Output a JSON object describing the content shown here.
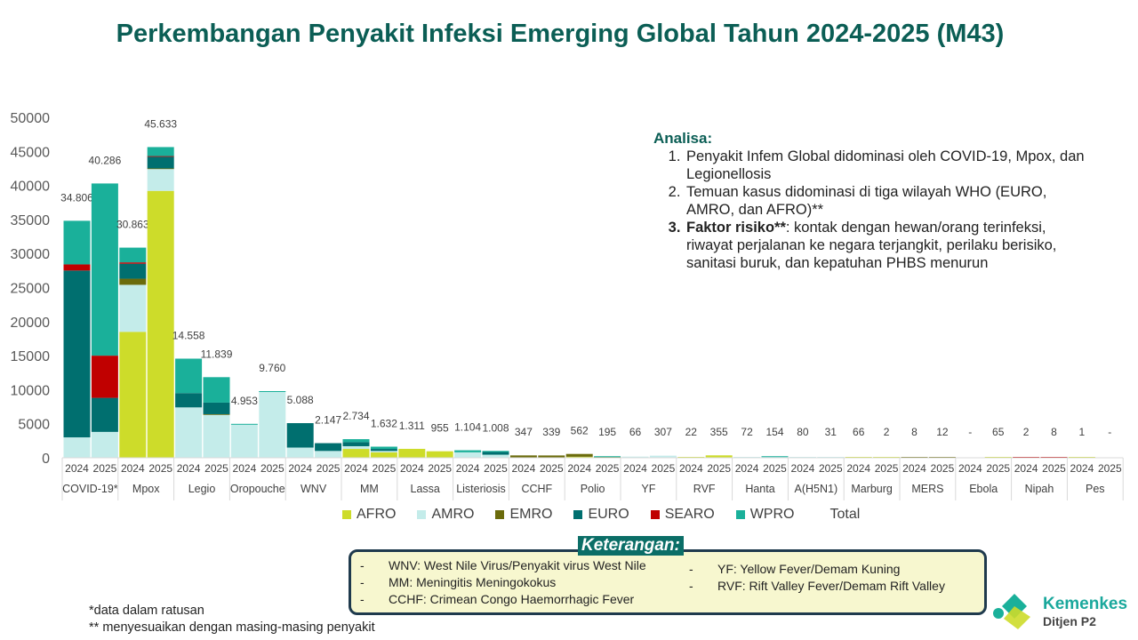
{
  "title": "Perkembangan Penyakit Infeksi Emerging Global Tahun 2024-2025 (M43)",
  "colors": {
    "AFRO": "#cddc2a",
    "AMRO": "#c4ecea",
    "EMRO": "#6b6b0b",
    "EURO": "#006f6f",
    "SEARO": "#c00000",
    "WPRO": "#1ab09a"
  },
  "chart_data": {
    "type": "bar",
    "stacked": true,
    "ylim": [
      0,
      50000
    ],
    "yticks": [
      0,
      5000,
      10000,
      15000,
      20000,
      25000,
      30000,
      35000,
      40000,
      45000,
      50000
    ],
    "years": [
      "2024",
      "2025"
    ],
    "series_names": [
      "AFRO",
      "AMRO",
      "EMRO",
      "EURO",
      "SEARO",
      "WPRO"
    ],
    "legend": [
      "AFRO",
      "AMRO",
      "EMRO",
      "EURO",
      "SEARO",
      "WPRO",
      "Total"
    ],
    "groups": [
      {
        "name": "COVID-19*",
        "bars": [
          {
            "total": "34.806",
            "v": [
              0,
              3000,
              0,
              24500,
              900,
              6406
            ]
          },
          {
            "total": "40.286",
            "v": [
              0,
              3800,
              0,
              5000,
              6200,
              25286
            ]
          }
        ]
      },
      {
        "name": "Mpox",
        "bars": [
          {
            "total": "30.863",
            "v": [
              18500,
              6900,
              900,
              2200,
              200,
              2163
            ]
          },
          {
            "total": "45.633",
            "v": [
              39200,
              3200,
              100,
              1700,
              100,
              1333
            ]
          }
        ]
      },
      {
        "name": "Legio",
        "bars": [
          {
            "total": "14.558",
            "v": [
              0,
              7400,
              0,
              2100,
              0,
              5058
            ]
          },
          {
            "total": "11.839",
            "v": [
              0,
              6300,
              100,
              1700,
              0,
              3739
            ]
          }
        ]
      },
      {
        "name": "Oropouche",
        "bars": [
          {
            "total": "4.953",
            "v": [
              0,
              4853,
              0,
              0,
              0,
              100
            ]
          },
          {
            "total": "9.760",
            "v": [
              0,
              9660,
              0,
              0,
              0,
              100
            ]
          }
        ]
      },
      {
        "name": "WNV",
        "bars": [
          {
            "total": "5.088",
            "v": [
              0,
              1500,
              0,
              3588,
              0,
              0
            ]
          },
          {
            "total": "2.147",
            "v": [
              0,
              1000,
              0,
              1147,
              0,
              0
            ]
          }
        ]
      },
      {
        "name": "MM",
        "bars": [
          {
            "total": "2.734",
            "v": [
              1300,
              400,
              0,
              600,
              0,
              434
            ]
          },
          {
            "total": "1.632",
            "v": [
              800,
              200,
              0,
              300,
              0,
              332
            ]
          }
        ]
      },
      {
        "name": "Lassa",
        "bars": [
          {
            "total": "1.311",
            "v": [
              1311,
              0,
              0,
              0,
              0,
              0
            ]
          },
          {
            "total": "955",
            "v": [
              955,
              0,
              0,
              0,
              0,
              0
            ]
          }
        ]
      },
      {
        "name": "Listeriosis",
        "bars": [
          {
            "total": "1.104",
            "v": [
              0,
              800,
              0,
              0,
              0,
              304
            ]
          },
          {
            "total": "1.008",
            "v": [
              0,
              450,
              0,
              400,
              0,
              158
            ]
          }
        ]
      },
      {
        "name": "CCHF",
        "bars": [
          {
            "total": "347",
            "v": [
              0,
              0,
              347,
              0,
              0,
              0
            ]
          },
          {
            "total": "339",
            "v": [
              0,
              0,
              339,
              0,
              0,
              0
            ]
          }
        ]
      },
      {
        "name": "Polio",
        "bars": [
          {
            "total": "562",
            "v": [
              150,
              0,
              412,
              0,
              0,
              0
            ]
          },
          {
            "total": "195",
            "v": [
              0,
              0,
              100,
              0,
              0,
              95
            ]
          }
        ]
      },
      {
        "name": "YF",
        "bars": [
          {
            "total": "66",
            "v": [
              40,
              26,
              0,
              0,
              0,
              0
            ]
          },
          {
            "total": "307",
            "v": [
              0,
              307,
              0,
              0,
              0,
              0
            ]
          }
        ]
      },
      {
        "name": "RVF",
        "bars": [
          {
            "total": "22",
            "v": [
              22,
              0,
              0,
              0,
              0,
              0
            ]
          },
          {
            "total": "355",
            "v": [
              355,
              0,
              0,
              0,
              0,
              0
            ]
          }
        ]
      },
      {
        "name": "Hanta",
        "bars": [
          {
            "total": "72",
            "v": [
              0,
              72,
              0,
              0,
              0,
              0
            ]
          },
          {
            "total": "154",
            "v": [
              0,
              100,
              0,
              0,
              0,
              54
            ]
          }
        ]
      },
      {
        "name": "A(H5N1)",
        "bars": [
          {
            "total": "80",
            "v": [
              0,
              80,
              0,
              0,
              0,
              0
            ]
          },
          {
            "total": "31",
            "v": [
              0,
              31,
              0,
              0,
              0,
              0
            ]
          }
        ]
      },
      {
        "name": "Marburg",
        "bars": [
          {
            "total": "66",
            "v": [
              66,
              0,
              0,
              0,
              0,
              0
            ]
          },
          {
            "total": "2",
            "v": [
              2,
              0,
              0,
              0,
              0,
              0
            ]
          }
        ]
      },
      {
        "name": "MERS",
        "bars": [
          {
            "total": "8",
            "v": [
              0,
              0,
              8,
              0,
              0,
              0
            ]
          },
          {
            "total": "12",
            "v": [
              0,
              0,
              12,
              0,
              0,
              0
            ]
          }
        ]
      },
      {
        "name": "Ebola",
        "bars": [
          {
            "total": "-",
            "v": [
              0,
              0,
              0,
              0,
              0,
              0
            ]
          },
          {
            "total": "65",
            "v": [
              65,
              0,
              0,
              0,
              0,
              0
            ]
          }
        ]
      },
      {
        "name": "Nipah",
        "bars": [
          {
            "total": "2",
            "v": [
              0,
              0,
              0,
              0,
              2,
              0
            ]
          },
          {
            "total": "8",
            "v": [
              0,
              0,
              0,
              0,
              8,
              0
            ]
          }
        ]
      },
      {
        "name": "Pes",
        "bars": [
          {
            "total": "1",
            "v": [
              1,
              0,
              0,
              0,
              0,
              0
            ]
          },
          {
            "total": "-",
            "v": [
              0,
              0,
              0,
              0,
              0,
              0
            ]
          }
        ]
      }
    ]
  },
  "analysis": {
    "heading": "Analisa:",
    "items": [
      {
        "bold": "",
        "text": "Penyakit Infem Global didominasi oleh COVID-19, Mpox, dan Legionellosis"
      },
      {
        "bold": "",
        "text": "Temuan kasus didominasi di tiga wilayah WHO (EURO, AMRO, dan AFRO)**"
      },
      {
        "bold": "Faktor risiko**",
        "text": ": kontak dengan hewan/orang terinfeksi, riwayat perjalanan ke negara terjangkit, perilaku berisiko, sanitasi buruk, dan kepatuhan PHBS menurun"
      }
    ]
  },
  "keterangan": {
    "title": "Keterangan:",
    "left": [
      "WNV: West Nile Virus/Penyakit virus West Nile",
      "MM: Meningitis Meningokokus",
      "CCHF: Crimean Congo Haemorrhagic Fever"
    ],
    "right": [
      "YF: Yellow Fever/Demam Kuning",
      "RVF: Rift Valley Fever/Demam Rift Valley"
    ]
  },
  "notes": [
    "*data dalam ratusan",
    "** menyesuaikan dengan masing-masing penyakit"
  ],
  "logo": {
    "name": "Kemenkes",
    "sub": "Ditjen P2"
  }
}
